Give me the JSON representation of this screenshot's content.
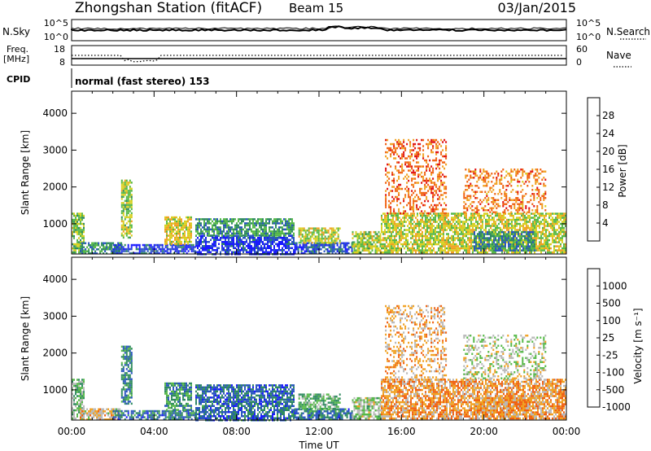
{
  "header": {
    "station": "Zhongshan Station (fitACF)",
    "beam": "Beam 15",
    "date": "03/Jan/2015"
  },
  "top_panels": {
    "nsky_label": "N.Sky",
    "nsky_ticks": [
      "10^5",
      "10^0"
    ],
    "nsearch_label": "N.Search",
    "nsearch_ticks": [
      "10^5",
      "10^0"
    ],
    "freq_label_1": "Freq.",
    "freq_label_2": "[MHz]",
    "freq_ticks": [
      "18",
      "8"
    ],
    "nave_label": "Nave",
    "nave_ticks": [
      "60",
      "0"
    ],
    "cpid_label": "CPID",
    "cpid_text": "normal (fast stereo) 153"
  },
  "chart_data": [
    {
      "type": "heatmap",
      "parameter": "Power",
      "ylabel": "Slant Range [km]",
      "xlabel": "",
      "ylim": [
        180,
        4600
      ],
      "xlim": [
        0,
        24
      ],
      "yticks": [
        "1000",
        "2000",
        "3000",
        "4000"
      ],
      "colorbar": {
        "label": "Power [dB]",
        "ticks": [
          "4",
          "8",
          "12",
          "16",
          "20",
          "24",
          "28"
        ],
        "colors": [
          "#1a1aff",
          "#2a55c0",
          "#2f8a60",
          "#56b848",
          "#d8d020",
          "#f0a020",
          "#f06010",
          "#e01010"
        ]
      },
      "echo_regions": [
        {
          "t0": 0.0,
          "t1": 0.6,
          "r0": 200,
          "r1": 1300,
          "level": 0.55
        },
        {
          "t0": 0.4,
          "t1": 2.4,
          "r0": 200,
          "r1": 500,
          "level": 0.7
        },
        {
          "t0": 2.4,
          "t1": 2.9,
          "r0": 600,
          "r1": 2200,
          "level": 0.5
        },
        {
          "t0": 2.0,
          "t1": 6.0,
          "r0": 200,
          "r1": 450,
          "level": 0.9
        },
        {
          "t0": 4.5,
          "t1": 5.8,
          "r0": 450,
          "r1": 1200,
          "level": 0.4
        },
        {
          "t0": 6.0,
          "t1": 10.8,
          "r0": 200,
          "r1": 700,
          "level": 0.92
        },
        {
          "t0": 6.0,
          "t1": 10.8,
          "r0": 700,
          "r1": 1150,
          "level": 0.68
        },
        {
          "t0": 10.8,
          "t1": 13.6,
          "r0": 200,
          "r1": 500,
          "level": 0.88
        },
        {
          "t0": 11.0,
          "t1": 13.0,
          "r0": 500,
          "r1": 900,
          "level": 0.45
        },
        {
          "t0": 13.6,
          "t1": 15.0,
          "r0": 200,
          "r1": 800,
          "level": 0.5
        },
        {
          "t0": 15.0,
          "t1": 24.0,
          "r0": 250,
          "r1": 1300,
          "level": 0.45
        },
        {
          "t0": 15.2,
          "t1": 18.2,
          "r0": 1300,
          "r1": 3300,
          "level": 0.15
        },
        {
          "t0": 19.0,
          "t1": 23.0,
          "r0": 1300,
          "r1": 2500,
          "level": 0.2
        },
        {
          "t0": 19.5,
          "t1": 22.5,
          "r0": 300,
          "r1": 800,
          "level": 0.72
        }
      ]
    },
    {
      "type": "heatmap",
      "parameter": "Velocity",
      "ylabel": "Slant Range [km]",
      "xlabel": "Time UT",
      "ylim": [
        180,
        4600
      ],
      "xlim": [
        0,
        24
      ],
      "xticks": [
        "00:00",
        "04:00",
        "08:00",
        "12:00",
        "16:00",
        "20:00",
        "00:00"
      ],
      "yticks": [
        "1000",
        "2000",
        "3000",
        "4000"
      ],
      "colorbar": {
        "label": "Velocity [m s⁻¹]",
        "ticks": [
          "1000",
          "500",
          "100",
          "25",
          "-25",
          "-100",
          "-500",
          "-1000"
        ],
        "colors": [
          "#1a1aff",
          "#2a55c0",
          "#2f8a60",
          "#56b848",
          "#b8b8b8",
          "#f0a020",
          "#f06010",
          "#e01010"
        ]
      },
      "echo_regions": [
        {
          "t0": 0.0,
          "t1": 0.6,
          "r0": 200,
          "r1": 1300,
          "level": 0.55
        },
        {
          "t0": 0.4,
          "t1": 2.4,
          "r0": 200,
          "r1": 500,
          "level": 0.35
        },
        {
          "t0": 2.4,
          "t1": 2.9,
          "r0": 600,
          "r1": 2200,
          "level": 0.75
        },
        {
          "t0": 2.0,
          "t1": 6.0,
          "r0": 200,
          "r1": 450,
          "level": 0.78
        },
        {
          "t0": 4.5,
          "t1": 5.8,
          "r0": 450,
          "r1": 1200,
          "level": 0.7
        },
        {
          "t0": 6.0,
          "t1": 10.8,
          "r0": 200,
          "r1": 700,
          "level": 0.8
        },
        {
          "t0": 6.0,
          "t1": 10.8,
          "r0": 700,
          "r1": 1150,
          "level": 0.82
        },
        {
          "t0": 10.8,
          "t1": 13.6,
          "r0": 200,
          "r1": 500,
          "level": 0.78
        },
        {
          "t0": 11.0,
          "t1": 13.0,
          "r0": 500,
          "r1": 900,
          "level": 0.6
        },
        {
          "t0": 13.6,
          "t1": 15.0,
          "r0": 200,
          "r1": 800,
          "level": 0.5
        },
        {
          "t0": 15.0,
          "t1": 24.0,
          "r0": 250,
          "r1": 1300,
          "level": 0.27
        },
        {
          "t0": 15.2,
          "t1": 18.2,
          "r0": 1300,
          "r1": 3300,
          "level": 0.3
        },
        {
          "t0": 19.0,
          "t1": 23.0,
          "r0": 1300,
          "r1": 2500,
          "level": 0.45
        },
        {
          "t0": 19.5,
          "t1": 22.5,
          "r0": 300,
          "r1": 800,
          "level": 0.28
        }
      ]
    }
  ]
}
